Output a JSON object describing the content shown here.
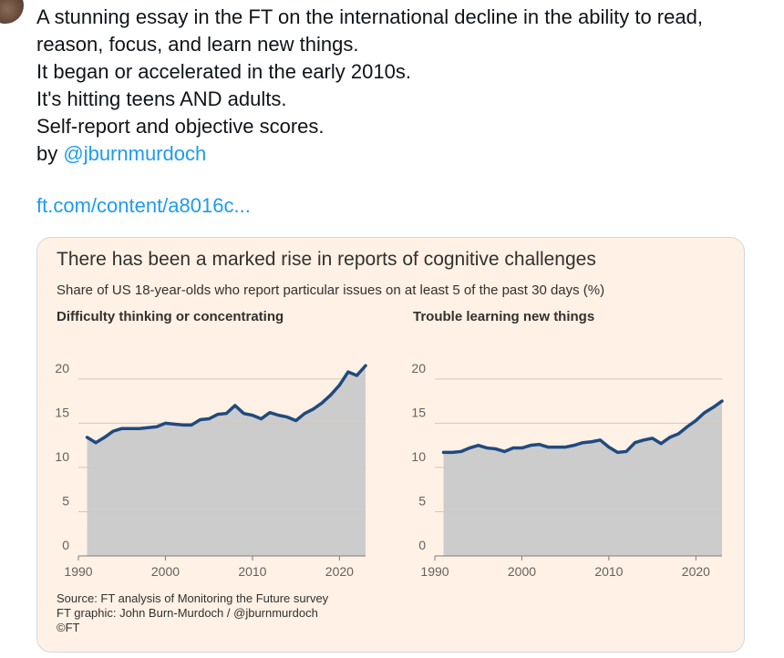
{
  "tweet": {
    "lines": [
      "A stunning essay in the FT on the international decline in the ability to read,",
      "reason, focus, and learn new things.",
      "It began or accelerated in the early 2010s.",
      "It's hitting teens AND adults.",
      "Self-report and objective scores."
    ],
    "by_prefix": "by ",
    "handle": "@jburnmurdoch",
    "link": "ft.com/content/a8016c..."
  },
  "card": {
    "title": "There has been a marked rise in reports of cognitive challenges",
    "subtitle": "Share of US 18-year-olds who report particular issues on at least 5 of the past 30 days (%)",
    "source_lines": [
      "Source: FT analysis of Monitoring the Future survey",
      "FT graphic: John Burn-Murdoch / @jburnmurdoch",
      "©FT"
    ]
  },
  "colors": {
    "card_background": "#fff1e5",
    "area_fill": "#cccccc",
    "line": "#1f4a7f",
    "link": "#1d9bf0"
  },
  "chart_data": [
    {
      "type": "area",
      "title": "Difficulty thinking or concentrating",
      "x_ticks": [
        "1990",
        "2000",
        "2010",
        "2020"
      ],
      "y_ticks": [
        "0",
        "5",
        "10",
        "15",
        "20"
      ],
      "xlim": [
        1990,
        2023
      ],
      "ylim": [
        0,
        24
      ],
      "grid": true,
      "x": [
        1991,
        1992,
        1993,
        1994,
        1995,
        1996,
        1997,
        1998,
        1999,
        2000,
        2001,
        2002,
        2003,
        2004,
        2005,
        2006,
        2007,
        2008,
        2009,
        2010,
        2011,
        2012,
        2013,
        2014,
        2015,
        2016,
        2017,
        2018,
        2019,
        2020,
        2021,
        2022,
        2023
      ],
      "values": [
        13.4,
        12.8,
        13.4,
        14.1,
        14.4,
        14.4,
        14.4,
        14.5,
        14.6,
        15.0,
        14.9,
        14.8,
        14.8,
        15.4,
        15.5,
        16.0,
        16.1,
        17.0,
        16.1,
        15.9,
        15.5,
        16.2,
        15.9,
        15.7,
        15.3,
        16.1,
        16.6,
        17.3,
        18.2,
        19.3,
        20.8,
        20.4,
        21.5
      ]
    },
    {
      "type": "area",
      "title": "Trouble learning new things",
      "x_ticks": [
        "1990",
        "2000",
        "2010",
        "2020"
      ],
      "y_ticks": [
        "0",
        "5",
        "10",
        "15",
        "20"
      ],
      "xlim": [
        1990,
        2023
      ],
      "ylim": [
        0,
        24
      ],
      "grid": true,
      "x": [
        1991,
        1992,
        1993,
        1994,
        1995,
        1996,
        1997,
        1998,
        1999,
        2000,
        2001,
        2002,
        2003,
        2004,
        2005,
        2006,
        2007,
        2008,
        2009,
        2010,
        2011,
        2012,
        2013,
        2014,
        2015,
        2016,
        2017,
        2018,
        2019,
        2020,
        2021,
        2022,
        2023
      ],
      "values": [
        11.7,
        11.7,
        11.8,
        12.2,
        12.5,
        12.2,
        12.1,
        11.8,
        12.2,
        12.2,
        12.5,
        12.6,
        12.3,
        12.3,
        12.3,
        12.5,
        12.8,
        12.9,
        13.1,
        12.3,
        11.7,
        11.8,
        12.8,
        13.1,
        13.3,
        12.7,
        13.4,
        13.8,
        14.6,
        15.3,
        16.2,
        16.8,
        17.5
      ]
    }
  ]
}
